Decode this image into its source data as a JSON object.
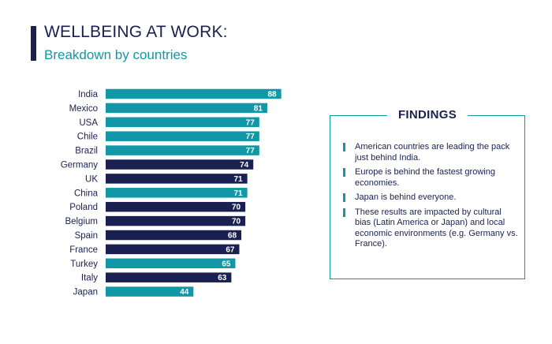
{
  "header": {
    "title": "WELLBEING AT WORK:",
    "subtitle": "Breakdown by countries"
  },
  "colors": {
    "americas_asia": "#1197a6",
    "europe": "#1a2150",
    "title": "#1a2150"
  },
  "chart_data": {
    "type": "bar",
    "orientation": "horizontal",
    "categories": [
      "India",
      "Mexico",
      "USA",
      "Chile",
      "Brazil",
      "Germany",
      "UK",
      "China",
      "Poland",
      "Belgium",
      "Spain",
      "France",
      "Turkey",
      "Italy",
      "Japan"
    ],
    "values": [
      88,
      81,
      77,
      77,
      77,
      74,
      71,
      71,
      70,
      70,
      68,
      67,
      65,
      63,
      44
    ],
    "bar_colors": [
      "#1197a6",
      "#1197a6",
      "#1197a6",
      "#1197a6",
      "#1197a6",
      "#1a2150",
      "#1a2150",
      "#1197a6",
      "#1a2150",
      "#1a2150",
      "#1a2150",
      "#1a2150",
      "#1197a6",
      "#1a2150",
      "#1197a6"
    ],
    "title": "",
    "xlabel": "",
    "ylabel": "",
    "xlim": [
      0,
      100
    ],
    "grid": false,
    "data_labels": true
  },
  "findings": {
    "title": "FINDINGS",
    "items": [
      "American countries are leading the pack just behind India.",
      "Europe is behind the fastest growing economies.",
      "Japan is behind everyone.",
      "These results are impacted by cultural bias (Latin America or Japan) and local economic environments (e.g. Germany vs. France)."
    ]
  }
}
